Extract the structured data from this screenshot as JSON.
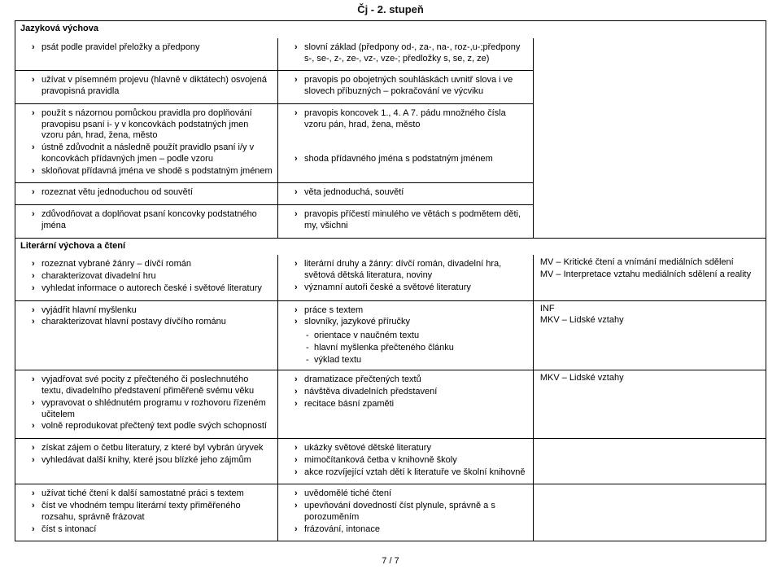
{
  "header": "Čj - 2. stupeň",
  "page_number": "7 / 7",
  "section1": {
    "heading": "Jazyková výchova",
    "rows": [
      {
        "left": [
          "psát podle pravidel přeložky a předpony"
        ],
        "mid": [
          "slovní základ (předpony od-, za-, na-, roz-,u-;předpony s-, se-, z-, ze-, vz-, vze-; předložky s, se, z, ze)"
        ],
        "right": []
      },
      {
        "left": [
          "užívat v písemném projevu (hlavně v diktátech) osvojená pravopisná pravidla"
        ],
        "mid": [
          "pravopis po obojetných souhláskách uvnitř slova i ve slovech příbuzných – pokračování ve výcviku"
        ],
        "right": []
      },
      {
        "left": [
          "použít s názornou pomůckou pravidla pro doplňování pravopisu psaní i- y v koncovkách podstatných jmen vzoru pán, hrad, žena, město",
          "ústně zdůvodnit a následně použít pravidlo psaní i/y v koncovkách přídavných jmen – podle vzoru",
          "skloňovat přídavná jména ve shodě s podstatným jménem"
        ],
        "mid": [
          "pravopis koncovek 1., 4. A 7. pádu množného čísla vzoru pán, hrad, žena, město",
          "shoda přídavného jména s podstatným jménem"
        ],
        "mid_spacer_after_first": true,
        "right": []
      },
      {
        "left": [
          "rozeznat větu jednoduchou od souvětí"
        ],
        "mid": [
          "věta jednoduchá, souvětí"
        ],
        "right": []
      },
      {
        "left": [
          "zdůvodňovat a doplňovat psaní koncovky podstatného jména"
        ],
        "mid": [
          "pravopis příčestí minulého ve větách s podmětem děti, my, všichni"
        ],
        "right": []
      }
    ]
  },
  "section2": {
    "heading": "Literární výchova a čtení",
    "rows": [
      {
        "left": [
          "rozeznat vybrané žánry – dívčí román",
          "charakterizovat divadelní hru",
          "vyhledat informace o autorech české i světové literatury"
        ],
        "mid": [
          "literární druhy a žánry: dívčí román, divadelní hra, světová dětská literatura, noviny",
          "významní autoři české a světové literatury"
        ],
        "right_plain": [
          "MV – Kritické čtení a vnímání mediálních sdělení",
          "MV – Interpretace vztahu mediálních sdělení a reality"
        ]
      },
      {
        "left": [
          "vyjádřit hlavní myšlenku",
          "charakterizovat hlavní postavy dívčího románu"
        ],
        "mid": [
          "práce s textem",
          "slovníky, jazykové příručky"
        ],
        "mid_dash": [
          "orientace v naučném textu",
          "hlavní myšlenka přečteného článku",
          "výklad textu"
        ],
        "right_plain": [
          "INF",
          "MKV – Lidské vztahy"
        ]
      },
      {
        "left": [
          "vyjadřovat své pocity z přečteného či poslechnutého textu, divadelního představení přiměřeně svému věku",
          "vypravovat o shlédnutém programu v rozhovoru řízeném učitelem",
          "volně reprodukovat přečtený text podle svých schopností"
        ],
        "mid": [
          "dramatizace přečtených textů",
          "návštěva divadelních představení",
          "recitace básní zpaměti"
        ],
        "right_plain": [
          "MKV – Lidské vztahy"
        ]
      },
      {
        "left": [
          "získat zájem o četbu literatury, z které byl vybrán úryvek",
          "vyhledávat další knihy, které jsou blízké jeho zájmům"
        ],
        "mid": [
          "ukázky světové dětské literatury",
          "mimočítanková četba v knihovně školy",
          "akce rozvíjející vztah dětí k literatuře ve školní knihovně"
        ],
        "right_plain": []
      },
      {
        "left": [
          "užívat tiché čtení k další samostatné práci s textem",
          "číst ve vhodném tempu literární texty přiměřeného rozsahu, správně frázovat",
          "číst s intonací"
        ],
        "mid": [
          "uvědomělé tiché čtení",
          "upevňování dovedností číst plynule, správně a s porozuměním",
          "frázování, intonace"
        ],
        "right_plain": []
      }
    ]
  }
}
